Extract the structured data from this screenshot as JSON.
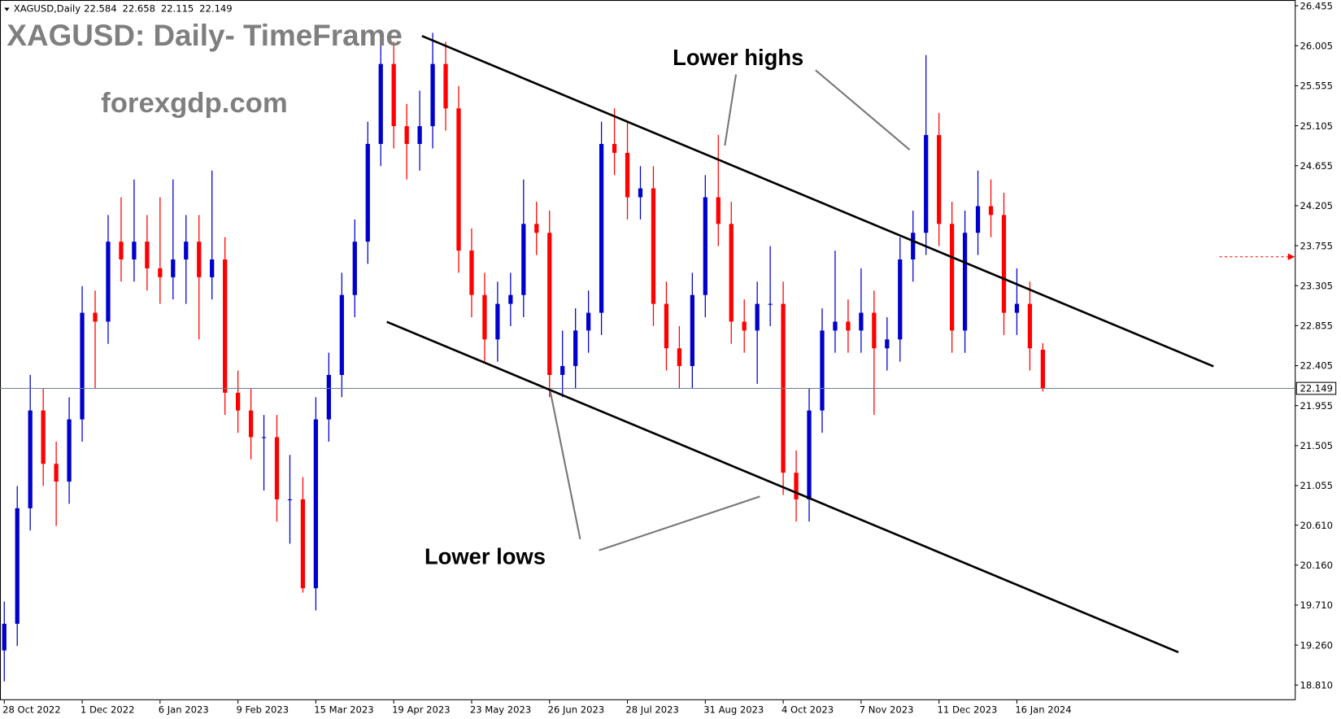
{
  "chart_data": {
    "type": "candlestick",
    "symbol": "XAGUSD,Daily",
    "title": "XAGUSD: Daily- TimeFrame",
    "subtitle": "forexgdp.com",
    "annotations": [
      "Lower highs",
      "Lower lows"
    ],
    "up_color": "#0000cc",
    "down_color": "#ff0000",
    "categories": [
      "28 Oct 2022",
      null,
      null,
      null,
      null,
      null,
      "1 Dec 2022",
      null,
      null,
      null,
      null,
      null,
      "6 Jan 2023",
      null,
      null,
      null,
      null,
      null,
      "9 Feb 2023",
      null,
      null,
      null,
      null,
      null,
      "15 Mar 2023",
      null,
      null,
      null,
      null,
      null,
      "19 Apr 2023",
      null,
      null,
      null,
      null,
      null,
      "23 May 2023",
      null,
      null,
      null,
      null,
      null,
      "26 Jun 2023",
      null,
      null,
      null,
      null,
      null,
      "28 Jul 2023",
      null,
      null,
      null,
      null,
      null,
      "31 Aug 2023",
      null,
      null,
      null,
      null,
      null,
      "4 Oct 2023",
      null,
      null,
      null,
      null,
      null,
      "7 Nov 2023",
      null,
      null,
      null,
      null,
      null,
      "11 Dec 2023",
      null,
      null,
      null,
      null,
      null,
      "16 Jan 2024",
      null,
      null
    ],
    "open": [
      19.2,
      19.5,
      20.8,
      21.9,
      21.3,
      21.1,
      21.8,
      23.0,
      22.9,
      23.8,
      23.6,
      23.8,
      23.5,
      23.4,
      23.6,
      23.8,
      23.4,
      23.6,
      22.1,
      21.9,
      21.6,
      21.6,
      20.9,
      20.9,
      19.9,
      21.8,
      22.3,
      23.2,
      23.8,
      24.9,
      25.8,
      25.1,
      24.9,
      25.1,
      25.8,
      25.3,
      23.7,
      23.2,
      22.7,
      23.1,
      23.2,
      24.0,
      23.9,
      22.3,
      22.4,
      22.8,
      23.0,
      24.9,
      24.8,
      24.3,
      24.4,
      23.1,
      22.6,
      22.4,
      23.2,
      24.3,
      24.0,
      22.9,
      22.8,
      23.1,
      23.1,
      21.2,
      20.9,
      21.9,
      22.8,
      22.9,
      22.8,
      23.0,
      22.6,
      22.7,
      23.6,
      23.9,
      25.0,
      24.0,
      22.8,
      23.9,
      24.2,
      24.1,
      23.0,
      23.1,
      22.584
    ],
    "high": [
      19.75,
      21.05,
      22.3,
      22.15,
      21.55,
      22.05,
      23.3,
      23.25,
      24.1,
      24.3,
      24.5,
      24.1,
      24.3,
      24.5,
      24.1,
      24.1,
      24.6,
      23.85,
      22.35,
      22.15,
      21.85,
      21.85,
      21.4,
      21.15,
      22.05,
      22.55,
      23.45,
      24.05,
      25.15,
      26.05,
      26.05,
      25.35,
      25.5,
      26.15,
      26.05,
      25.55,
      23.95,
      23.45,
      23.35,
      23.45,
      24.5,
      24.25,
      24.15,
      22.8,
      23.05,
      23.25,
      25.15,
      25.3,
      25.15,
      24.65,
      24.65,
      23.35,
      22.85,
      23.45,
      24.55,
      25.0,
      24.25,
      23.15,
      23.35,
      23.75,
      23.35,
      21.45,
      22.15,
      23.05,
      23.7,
      23.15,
      23.5,
      23.25,
      22.95,
      23.85,
      24.15,
      25.9,
      25.25,
      24.25,
      24.15,
      24.6,
      24.5,
      24.35,
      23.5,
      23.35,
      22.658
    ],
    "low": [
      18.85,
      19.25,
      20.55,
      21.05,
      20.6,
      20.85,
      21.55,
      22.15,
      22.65,
      23.35,
      23.35,
      23.25,
      23.1,
      23.15,
      23.1,
      22.7,
      23.15,
      21.85,
      21.65,
      21.35,
      21.0,
      20.65,
      20.4,
      19.85,
      19.65,
      21.55,
      22.05,
      22.95,
      23.55,
      24.65,
      24.85,
      24.5,
      24.6,
      24.85,
      25.05,
      23.45,
      22.95,
      22.45,
      22.45,
      22.85,
      22.95,
      23.65,
      22.05,
      22.05,
      22.15,
      22.55,
      22.75,
      24.55,
      24.05,
      24.05,
      22.85,
      22.35,
      22.15,
      22.15,
      22.95,
      23.75,
      22.65,
      22.55,
      22.2,
      22.85,
      20.95,
      20.65,
      20.65,
      21.65,
      22.55,
      22.55,
      22.55,
      21.85,
      22.35,
      22.45,
      23.35,
      23.65,
      23.75,
      22.55,
      22.55,
      23.65,
      23.85,
      22.75,
      22.75,
      22.35,
      22.115
    ],
    "close": [
      19.5,
      20.8,
      21.9,
      21.3,
      21.1,
      21.8,
      23.0,
      22.9,
      23.8,
      23.6,
      23.8,
      23.5,
      23.4,
      23.6,
      23.8,
      23.4,
      23.6,
      22.1,
      21.9,
      21.6,
      21.6,
      20.9,
      20.9,
      19.9,
      21.8,
      22.3,
      23.2,
      23.8,
      24.9,
      25.8,
      25.1,
      24.9,
      25.1,
      25.8,
      25.3,
      23.7,
      23.2,
      22.7,
      23.1,
      23.2,
      24.0,
      23.9,
      22.3,
      22.4,
      22.8,
      23.0,
      24.9,
      24.8,
      24.3,
      24.4,
      23.1,
      22.6,
      22.4,
      23.2,
      24.3,
      24.0,
      22.9,
      22.8,
      23.1,
      23.1,
      21.2,
      20.9,
      21.9,
      22.8,
      22.9,
      22.8,
      23.0,
      22.6,
      22.7,
      23.6,
      23.9,
      25.0,
      24.0,
      22.8,
      23.9,
      24.2,
      24.1,
      23.0,
      23.1,
      22.6,
      22.149
    ],
    "ylim": [
      18.64,
      26.52
    ],
    "yticks": [
      26.455,
      26.005,
      25.555,
      25.105,
      24.655,
      24.205,
      23.755,
      23.305,
      22.855,
      22.405,
      21.955,
      21.505,
      21.055,
      {
        "value": 20.61,
        "label": "20.610"
      },
      {
        "value": 20.16,
        "label": "20.160"
      },
      {
        "value": 19.71,
        "label": "19.710"
      },
      {
        "value": 19.26,
        "label": "19.260"
      },
      {
        "value": 18.81,
        "label": "18.810"
      }
    ]
  }
}
